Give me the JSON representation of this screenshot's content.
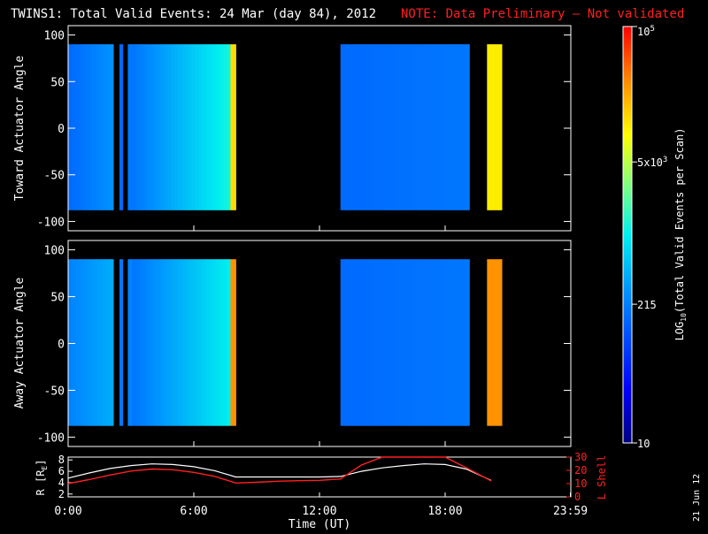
{
  "title": {
    "main": "TWINS1: Total Valid Events: 24 Mar (day  84), 2012",
    "note": "NOTE: Data Preliminary — Not validated"
  },
  "date_stamp": "21 Jun 12",
  "colors": {
    "background": "#000000",
    "frame": "#ffffff",
    "note": "#ff2020",
    "r_line": "#ffffff",
    "lshell_line": "#ff2020"
  },
  "chart_data": [
    {
      "type": "heatmap",
      "panel": "toward",
      "ylabel": "Toward Actuator Angle",
      "xlim": [
        0,
        24
      ],
      "ylim": [
        -110,
        110
      ],
      "yticks": [
        100,
        50,
        0,
        -50,
        -100
      ],
      "data_ylim": [
        -88,
        90
      ],
      "colorscale": "log",
      "blocks": [
        {
          "t0": 0.0,
          "t1": 2.15,
          "level": [
            0.3,
            0.36
          ]
        },
        {
          "t0": 2.45,
          "t1": 2.6,
          "level": [
            0.3,
            0.3
          ]
        },
        {
          "t0": 2.85,
          "t1": 3.05,
          "level": [
            0.32,
            0.32
          ]
        },
        {
          "t0": 3.05,
          "t1": 7.75,
          "level": [
            0.32,
            0.52
          ]
        },
        {
          "t0": 7.75,
          "t1": 8.0,
          "level": [
            0.78,
            0.78
          ]
        },
        {
          "t0": 13.0,
          "t1": 19.15,
          "level": [
            0.3,
            0.32
          ]
        },
        {
          "t0": 20.0,
          "t1": 20.7,
          "level": [
            0.76,
            0.76
          ]
        }
      ]
    },
    {
      "type": "heatmap",
      "panel": "away",
      "ylabel": "Away Actuator Angle",
      "xlim": [
        0,
        24
      ],
      "ylim": [
        -110,
        110
      ],
      "yticks": [
        100,
        50,
        0,
        -50,
        -100
      ],
      "data_ylim": [
        -88,
        90
      ],
      "colorscale": "log",
      "blocks": [
        {
          "t0": 0.0,
          "t1": 2.15,
          "level": [
            0.34,
            0.4
          ]
        },
        {
          "t0": 2.45,
          "t1": 2.6,
          "level": [
            0.32,
            0.32
          ]
        },
        {
          "t0": 2.85,
          "t1": 3.05,
          "level": [
            0.34,
            0.34
          ]
        },
        {
          "t0": 3.05,
          "t1": 7.75,
          "level": [
            0.32,
            0.5
          ]
        },
        {
          "t0": 7.75,
          "t1": 8.0,
          "level": [
            0.86,
            0.86
          ]
        },
        {
          "t0": 13.0,
          "t1": 19.15,
          "level": [
            0.3,
            0.32
          ]
        },
        {
          "t0": 20.0,
          "t1": 20.7,
          "level": [
            0.86,
            0.86
          ]
        }
      ]
    },
    {
      "type": "line",
      "panel": "ephemeris",
      "xlabel": "Time (UT)",
      "xticks": [
        "0:00",
        "6:00",
        "12:00",
        "18:00",
        "23:59"
      ],
      "xtick_values": [
        0,
        6,
        12,
        18,
        23.98
      ],
      "ylabel_left": "R [R",
      "ylabel_left_sub": "E",
      "ylabel_left_close": "]",
      "ylim_left": [
        1.5,
        8.5
      ],
      "yticks_left": [
        "8",
        "6",
        "4",
        "2"
      ],
      "ylabel_right": "L Shell",
      "ylim_right": [
        0,
        30
      ],
      "yticks_right": [
        "30",
        "20",
        "10",
        "0"
      ],
      "series": [
        {
          "axis": "left",
          "x": [
            0,
            1,
            2,
            3,
            4,
            5,
            6,
            7,
            8,
            9,
            10,
            11,
            12,
            13,
            14,
            15,
            16,
            17,
            18,
            19,
            20.2
          ],
          "y": [
            4.8,
            5.7,
            6.5,
            7.0,
            7.3,
            7.2,
            6.8,
            6.1,
            5.0,
            5.0,
            5.0,
            5.0,
            5.0,
            5.1,
            6.0,
            6.6,
            7.0,
            7.3,
            7.2,
            6.4,
            4.4
          ]
        },
        {
          "axis": "right",
          "x": [
            0,
            1,
            2,
            3,
            4,
            5,
            6,
            7,
            8,
            9,
            10,
            11,
            12,
            13,
            14,
            15,
            16,
            17,
            18,
            19,
            20.2
          ],
          "y": [
            10.0,
            13.0,
            16.5,
            19.5,
            21.0,
            20.5,
            18.5,
            15.5,
            10.5,
            11.0,
            11.8,
            12.2,
            12.5,
            13.5,
            24.0,
            35,
            35,
            35,
            31.5,
            22.0,
            12.0
          ]
        }
      ]
    }
  ],
  "colorbar": {
    "label": "LOG",
    "label_sub": "10",
    "label_rest": "(Total Valid Events per Scan)",
    "min": 10,
    "max": 100000,
    "ticks": [
      {
        "value": 100000,
        "base": "10",
        "sup": "5"
      },
      {
        "value": 5000,
        "base": "5x10",
        "sup": "3"
      },
      {
        "value": 215,
        "base": "215",
        "sup": ""
      },
      {
        "value": 10,
        "base": "10",
        "sup": ""
      }
    ]
  }
}
